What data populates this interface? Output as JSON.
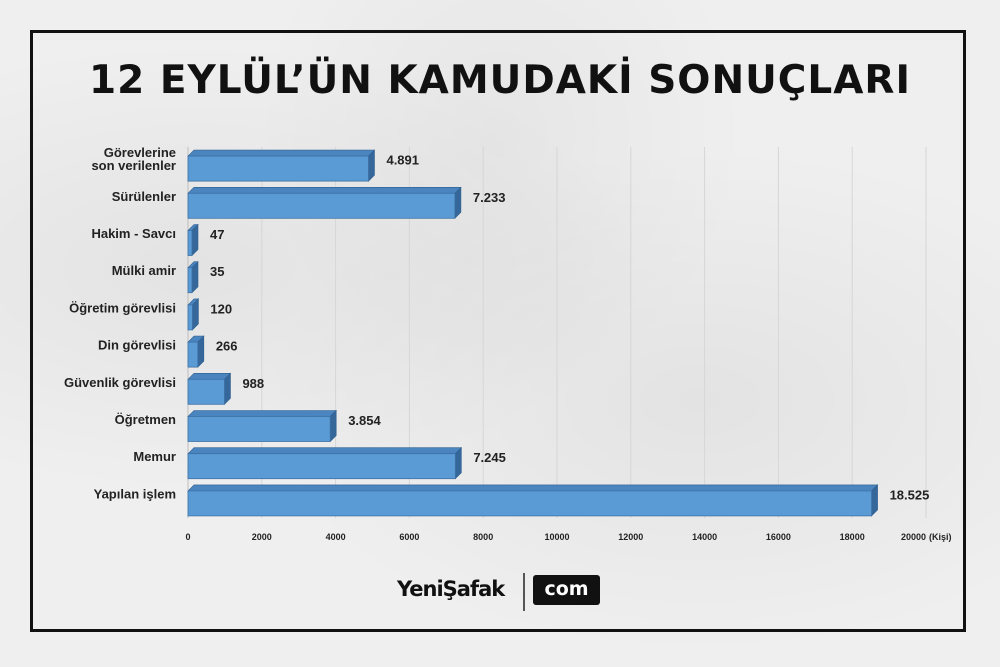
{
  "title": "12 EYLÜL’ÜN KAMUDAKİ SONUÇLARI",
  "chart_data": {
    "type": "bar",
    "orientation": "horizontal",
    "categories": [
      [
        "Görevlerine",
        "son verilenler"
      ],
      [
        "Sürülenler"
      ],
      [
        "Hakim - Savcı"
      ],
      [
        "Mülki amir"
      ],
      [
        "Öğretim görevlisi"
      ],
      [
        "Din görevlisi"
      ],
      [
        "Güvenlik görevlisi"
      ],
      [
        "Öğretmen"
      ],
      [
        "Memur"
      ],
      [
        "Yapılan işlem"
      ]
    ],
    "values": [
      4891,
      7233,
      47,
      35,
      120,
      266,
      988,
      3854,
      7245,
      18525
    ],
    "value_labels": [
      "4.891",
      "7.233",
      "47",
      "35",
      "120",
      "266",
      "988",
      "3.854",
      "7.245",
      "18.525"
    ],
    "x_ticks": [
      "0",
      "2000",
      "4000",
      "6000",
      "8000",
      "10000",
      "12000",
      "14000",
      "16000",
      "18000",
      "20000"
    ],
    "x_unit": "(Kişi)",
    "xlim": [
      0,
      20000
    ],
    "grid": "vertical",
    "bar_color": "#5a9ad5",
    "bar_dark_color": "#35679a"
  },
  "footer": {
    "brand": "YeniŞafak",
    "badge": "com"
  }
}
